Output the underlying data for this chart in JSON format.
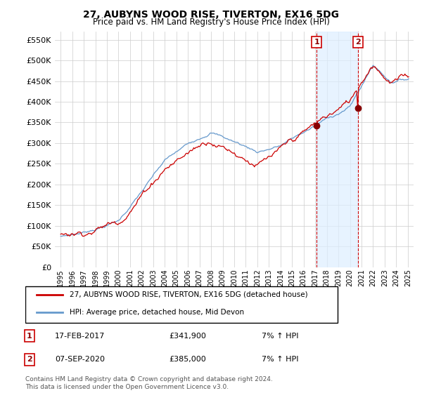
{
  "title": "27, AUBYNS WOOD RISE, TIVERTON, EX16 5DG",
  "subtitle": "Price paid vs. HM Land Registry's House Price Index (HPI)",
  "legend_line1": "27, AUBYNS WOOD RISE, TIVERTON, EX16 5DG (detached house)",
  "legend_line2": "HPI: Average price, detached house, Mid Devon",
  "annotation1_label": "1",
  "annotation1_date": "17-FEB-2017",
  "annotation1_price": "£341,900",
  "annotation1_hpi": "7% ↑ HPI",
  "annotation1_year": 2017.12,
  "annotation1_value": 341900,
  "annotation2_label": "2",
  "annotation2_date": "07-SEP-2020",
  "annotation2_price": "£385,000",
  "annotation2_hpi": "7% ↑ HPI",
  "annotation2_year": 2020.69,
  "annotation2_value": 385000,
  "footer": "Contains HM Land Registry data © Crown copyright and database right 2024.\nThis data is licensed under the Open Government Licence v3.0.",
  "line1_color": "#cc0000",
  "line2_color": "#6699cc",
  "shade_color": "#ddeeff",
  "vline_color": "#cc0000",
  "dot_color": "#880000",
  "background_color": "#ffffff",
  "grid_color": "#cccccc",
  "ylim": [
    0,
    570000
  ],
  "xlim_start": 1994.5,
  "xlim_end": 2025.5
}
